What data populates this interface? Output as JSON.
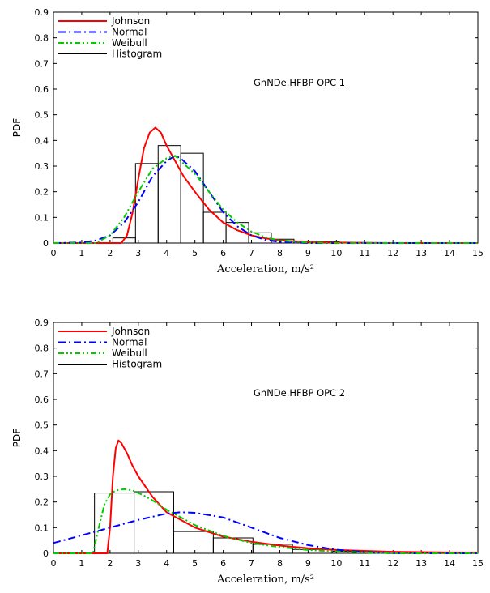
{
  "chart_data": [
    {
      "type": "line",
      "title": "",
      "annotation": "GnNDe.HFBP OPC 1",
      "xlabel": "Acceleration, m/s²",
      "ylabel": "PDF",
      "xlim": [
        0,
        15
      ],
      "ylim": [
        0,
        0.9
      ],
      "xticks": [
        "0",
        "1",
        "2",
        "3",
        "4",
        "5",
        "6",
        "7",
        "8",
        "9",
        "10",
        "11",
        "12",
        "13",
        "14",
        "15"
      ],
      "yticks": [
        "0",
        "0.1",
        "0.2",
        "0.3",
        "0.4",
        "0.5",
        "0.6",
        "0.7",
        "0.8",
        "0.9"
      ],
      "legend_position": "top-left",
      "series": [
        {
          "name": "Johnson",
          "style": "solid",
          "color": "#ff0000",
          "x": [
            0,
            2.4,
            2.6,
            2.8,
            3.0,
            3.2,
            3.4,
            3.6,
            3.8,
            4.0,
            4.3,
            4.6,
            5.0,
            5.5,
            6.0,
            6.5,
            7.0,
            7.5,
            8.0,
            9.0,
            10.0,
            12.0,
            15.0
          ],
          "y": [
            0,
            0.0,
            0.03,
            0.12,
            0.25,
            0.37,
            0.43,
            0.45,
            0.43,
            0.38,
            0.32,
            0.26,
            0.2,
            0.13,
            0.08,
            0.05,
            0.03,
            0.018,
            0.01,
            0.004,
            0.002,
            0.0,
            0.0
          ]
        },
        {
          "name": "Normal",
          "style": "dashdot",
          "color": "#0000ff",
          "x": [
            0,
            1.0,
            1.5,
            2.0,
            2.5,
            3.0,
            3.5,
            4.0,
            4.3,
            4.5,
            5.0,
            5.5,
            6.0,
            6.5,
            7.0,
            7.5,
            8.0,
            9.0,
            15.0
          ],
          "y": [
            0,
            0.002,
            0.01,
            0.03,
            0.08,
            0.16,
            0.26,
            0.32,
            0.34,
            0.33,
            0.28,
            0.2,
            0.12,
            0.065,
            0.03,
            0.012,
            0.004,
            0.0,
            0.0
          ]
        },
        {
          "name": "Weibull",
          "style": "dashdotdot",
          "color": "#00cc00",
          "x": [
            0,
            1.5,
            2.0,
            2.5,
            3.0,
            3.5,
            4.0,
            4.3,
            4.5,
            5.0,
            5.5,
            6.0,
            6.5,
            7.0,
            7.5,
            8.0,
            9.0,
            10.0,
            15.0
          ],
          "y": [
            0,
            0.0,
            0.03,
            0.1,
            0.2,
            0.29,
            0.33,
            0.34,
            0.32,
            0.27,
            0.2,
            0.13,
            0.08,
            0.045,
            0.022,
            0.01,
            0.002,
            0.0,
            0.0
          ]
        }
      ],
      "histogram": {
        "name": "Histogram",
        "edges": [
          2.1,
          2.9,
          3.7,
          4.5,
          5.3,
          6.1,
          6.9,
          7.7,
          8.5,
          9.3,
          10.1
        ],
        "values": [
          0.02,
          0.31,
          0.38,
          0.35,
          0.12,
          0.08,
          0.04,
          0.015,
          0.008,
          0.005
        ]
      }
    },
    {
      "type": "line",
      "title": "",
      "annotation": "GnNDe.HFBP OPC 2",
      "xlabel": "Acceleration, m/s²",
      "ylabel": "PDF",
      "xlim": [
        0,
        15
      ],
      "ylim": [
        0,
        0.9
      ],
      "xticks": [
        "0",
        "1",
        "2",
        "3",
        "4",
        "5",
        "6",
        "7",
        "8",
        "9",
        "10",
        "11",
        "12",
        "13",
        "14",
        "15"
      ],
      "yticks": [
        "0",
        "0.1",
        "0.2",
        "0.3",
        "0.4",
        "0.5",
        "0.6",
        "0.7",
        "0.8",
        "0.9"
      ],
      "legend_position": "top-left",
      "series": [
        {
          "name": "Johnson",
          "style": "solid",
          "color": "#ff0000",
          "x": [
            0,
            1.9,
            2.0,
            2.1,
            2.2,
            2.3,
            2.4,
            2.6,
            2.8,
            3.0,
            3.5,
            4.0,
            5.0,
            6.0,
            7.0,
            8.0,
            9.0,
            10.0,
            12.0,
            15.0
          ],
          "y": [
            0,
            0.0,
            0.1,
            0.3,
            0.41,
            0.44,
            0.43,
            0.39,
            0.34,
            0.3,
            0.22,
            0.16,
            0.1,
            0.065,
            0.045,
            0.03,
            0.02,
            0.013,
            0.006,
            0.002
          ]
        },
        {
          "name": "Normal",
          "style": "dashdot",
          "color": "#0000ff",
          "x": [
            0,
            1.0,
            2.0,
            3.0,
            4.0,
            4.5,
            5.0,
            6.0,
            7.0,
            8.0,
            9.0,
            10.0,
            11.0,
            12.0,
            15.0
          ],
          "y": [
            0.04,
            0.07,
            0.1,
            0.13,
            0.155,
            0.16,
            0.158,
            0.14,
            0.1,
            0.06,
            0.032,
            0.014,
            0.005,
            0.0,
            0.0
          ]
        },
        {
          "name": "Weibull",
          "style": "dashdotdot",
          "color": "#00cc00",
          "x": [
            0,
            1.4,
            1.6,
            1.8,
            2.0,
            2.2,
            2.5,
            2.8,
            3.2,
            3.6,
            4.0,
            5.0,
            6.0,
            7.0,
            8.0,
            9.0,
            10.0,
            11.0,
            12.0,
            15.0
          ],
          "y": [
            0,
            0.0,
            0.1,
            0.19,
            0.23,
            0.245,
            0.25,
            0.245,
            0.225,
            0.2,
            0.17,
            0.11,
            0.068,
            0.04,
            0.024,
            0.013,
            0.007,
            0.003,
            0.0,
            0.0
          ]
        }
      ],
      "histogram": {
        "name": "Histogram",
        "edges": [
          1.45,
          2.85,
          4.25,
          5.65,
          7.05,
          8.45,
          9.85,
          11.25,
          12.65,
          14.05,
          15.0
        ],
        "values": [
          0.235,
          0.24,
          0.085,
          0.06,
          0.035,
          0.015,
          0.008,
          0.006,
          0.004,
          0.002
        ]
      }
    }
  ]
}
